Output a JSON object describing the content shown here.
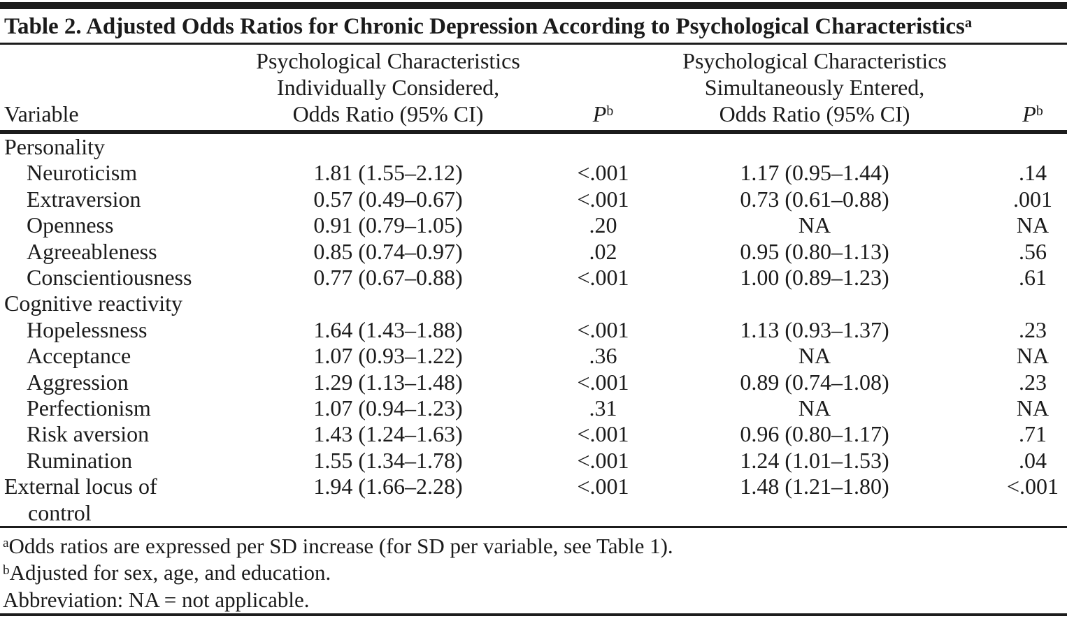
{
  "table": {
    "title": "Table 2. Adjusted Odds Ratios for Chronic Depression According to Psychological Characteristics",
    "title_superscript": "a",
    "columns": {
      "variable": "Variable",
      "individually": [
        "Psychological Characteristics",
        "Individually Considered,",
        "Odds Ratio (95% CI)"
      ],
      "p1": {
        "label": "P",
        "superscript": "b"
      },
      "simultaneously": [
        "Psychological Characteristics",
        "Simultaneously Entered,",
        "Odds Ratio (95% CI)"
      ],
      "p2": {
        "label": "P",
        "superscript": "b"
      }
    },
    "rows": [
      {
        "type": "section",
        "variable": "Personality",
        "or1": "",
        "p1": "",
        "or2": "",
        "p2": ""
      },
      {
        "type": "item",
        "variable": "Neuroticism",
        "or1": "1.81 (1.55–2.12)",
        "p1": "<.001",
        "or2": "1.17 (0.95–1.44)",
        "p2": ".14"
      },
      {
        "type": "item",
        "variable": "Extraversion",
        "or1": "0.57 (0.49–0.67)",
        "p1": "<.001",
        "or2": "0.73 (0.61–0.88)",
        "p2": ".001"
      },
      {
        "type": "item",
        "variable": "Openness",
        "or1": "0.91 (0.79–1.05)",
        "p1": ".20",
        "or2": "NA",
        "p2": "NA"
      },
      {
        "type": "item",
        "variable": "Agreeableness",
        "or1": "0.85 (0.74–0.97)",
        "p1": ".02",
        "or2": "0.95 (0.80–1.13)",
        "p2": ".56"
      },
      {
        "type": "item",
        "variable": "Conscientiousness",
        "or1": "0.77 (0.67–0.88)",
        "p1": "<.001",
        "or2": "1.00 (0.89–1.23)",
        "p2": ".61"
      },
      {
        "type": "section",
        "variable": "Cognitive reactivity",
        "or1": "",
        "p1": "",
        "or2": "",
        "p2": ""
      },
      {
        "type": "item",
        "variable": "Hopelessness",
        "or1": "1.64 (1.43–1.88)",
        "p1": "<.001",
        "or2": "1.13 (0.93–1.37)",
        "p2": ".23"
      },
      {
        "type": "item",
        "variable": "Acceptance",
        "or1": "1.07 (0.93–1.22)",
        "p1": ".36",
        "or2": "NA",
        "p2": "NA"
      },
      {
        "type": "item",
        "variable": "Aggression",
        "or1": "1.29 (1.13–1.48)",
        "p1": "<.001",
        "or2": "0.89 (0.74–1.08)",
        "p2": ".23"
      },
      {
        "type": "item",
        "variable": "Perfectionism",
        "or1": "1.07 (0.94–1.23)",
        "p1": ".31",
        "or2": "NA",
        "p2": "NA"
      },
      {
        "type": "item",
        "variable": "Risk aversion",
        "or1": "1.43 (1.24–1.63)",
        "p1": "<.001",
        "or2": "0.96 (0.80–1.17)",
        "p2": ".71"
      },
      {
        "type": "item",
        "variable": "Rumination",
        "or1": "1.55 (1.34–1.78)",
        "p1": "<.001",
        "or2": "1.24 (1.01–1.53)",
        "p2": ".04"
      },
      {
        "type": "top-item",
        "variable": "External locus of",
        "or1": "1.94 (1.66–2.28)",
        "p1": "<.001",
        "or2": "1.48 (1.21–1.80)",
        "p2": "<.001"
      },
      {
        "type": "continuation",
        "variable": "control",
        "or1": "",
        "p1": "",
        "or2": "",
        "p2": ""
      }
    ],
    "footnotes": [
      {
        "marker": "a",
        "text": "Odds ratios are expressed per SD increase (for SD per variable, see Table 1)."
      },
      {
        "marker": "b",
        "text": "Adjusted for sex, age, and education."
      },
      {
        "marker": "",
        "text": "Abbreviation: NA = not applicable."
      }
    ]
  }
}
